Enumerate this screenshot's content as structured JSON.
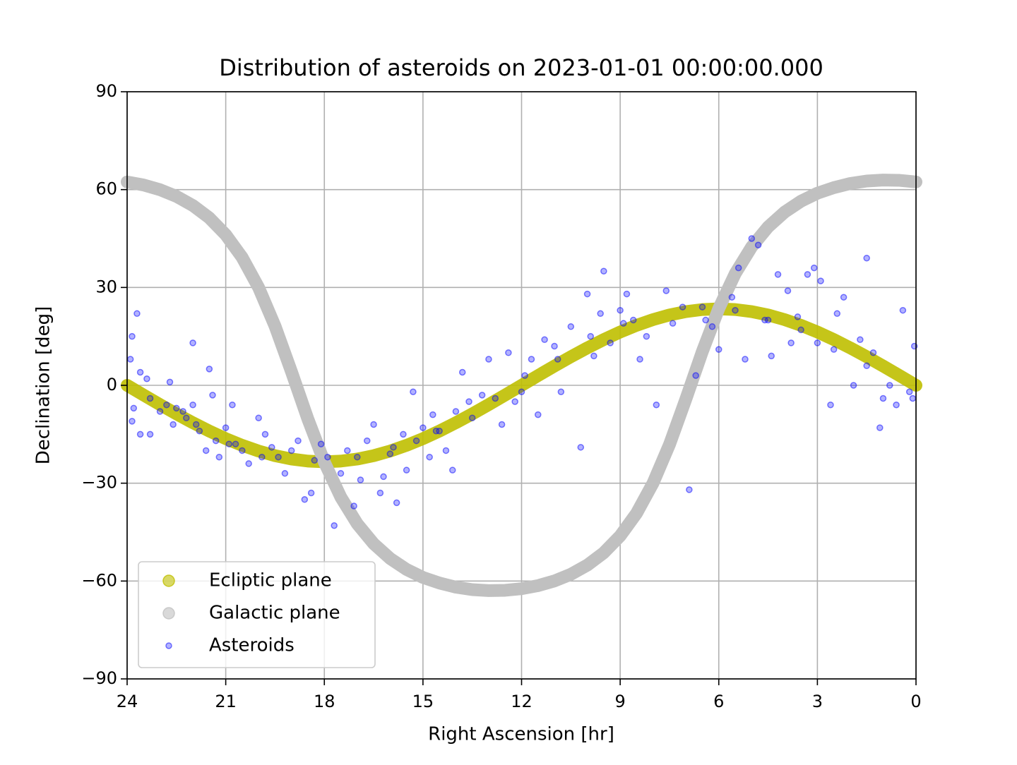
{
  "chart_data": {
    "type": "scatter",
    "title": "Distribution of asteroids on 2023-01-01 00:00:00.000",
    "x_label": "Right Ascension [hr]",
    "y_label": "Declination [deg]",
    "xlim": [
      24,
      0
    ],
    "ylim": [
      -90,
      90
    ],
    "xticks": [
      24,
      21,
      18,
      15,
      12,
      9,
      6,
      3,
      0
    ],
    "yticks": [
      {
        "value": -90,
        "label": "−90"
      },
      {
        "value": -60,
        "label": "−60"
      },
      {
        "value": -30,
        "label": "−30"
      },
      0,
      30,
      60,
      90
    ],
    "grid": true,
    "legend": "lower left",
    "series": [
      {
        "name": "Ecliptic plane",
        "color": "#bfbf00",
        "alpha": 0.9,
        "style": "band",
        "x": [
          0,
          0.5,
          1,
          1.5,
          2,
          2.5,
          3,
          3.5,
          4,
          4.5,
          5,
          5.5,
          6,
          6.5,
          7,
          7.5,
          8,
          8.5,
          9,
          9.5,
          10,
          10.5,
          11,
          11.5,
          12,
          12.5,
          13,
          13.5,
          14,
          14.5,
          15,
          15.5,
          16,
          16.5,
          17,
          17.5,
          18,
          18.5,
          19,
          19.5,
          20,
          20.5,
          21,
          21.5,
          22,
          22.5,
          23,
          23.5,
          24
        ],
        "values": [
          0,
          2.98,
          5.91,
          8.76,
          11.47,
          14.02,
          16.34,
          18.4,
          20.15,
          21.56,
          22.6,
          23.23,
          23.44,
          23.23,
          22.6,
          21.56,
          20.15,
          18.4,
          16.34,
          14.02,
          11.47,
          8.76,
          5.91,
          2.98,
          0,
          -2.98,
          -5.91,
          -8.76,
          -11.47,
          -14.02,
          -16.34,
          -18.4,
          -20.15,
          -21.56,
          -22.6,
          -23.23,
          -23.44,
          -23.23,
          -22.6,
          -21.56,
          -20.15,
          -18.4,
          -16.34,
          -14.02,
          -11.47,
          -8.76,
          -5.91,
          -2.98,
          0
        ]
      },
      {
        "name": "Galactic plane",
        "color": "#c0c0c0",
        "alpha": 1,
        "style": "band",
        "x": [
          0,
          0.5,
          1,
          1.5,
          2,
          2.5,
          3,
          3.5,
          4,
          4.5,
          5,
          5.5,
          6,
          6.5,
          7,
          7.5,
          8,
          8.5,
          9,
          9.5,
          10,
          10.5,
          11,
          11.5,
          12,
          12.5,
          13,
          13.5,
          14,
          14.5,
          15,
          15.5,
          16,
          16.5,
          17,
          17.5,
          18,
          18.5,
          19,
          19.5,
          20,
          20.5,
          21,
          21.5,
          22,
          22.5,
          23,
          23.5,
          24
        ],
        "values": [
          62.35,
          62.84,
          62.92,
          62.63,
          61.87,
          60.6,
          58.9,
          56.44,
          53.08,
          48.56,
          42.45,
          34.26,
          23.54,
          10.36,
          -4.18,
          -18.15,
          -29.98,
          -39.21,
          -46.16,
          -51.33,
          -55.12,
          -57.93,
          -59.97,
          -61.41,
          -62.35,
          -62.84,
          -62.92,
          -62.63,
          -61.87,
          -60.6,
          -58.9,
          -56.44,
          -53.08,
          -48.56,
          -42.45,
          -34.26,
          -23.54,
          -10.36,
          4.18,
          18.15,
          29.98,
          39.21,
          46.16,
          51.33,
          55.12,
          57.93,
          59.97,
          61.41,
          62.35
        ]
      },
      {
        "name": "Asteroids",
        "color": "#0000ff",
        "alpha": 0.3,
        "style": "points",
        "x": [
          23.9,
          23.85,
          23.7,
          23.8,
          23.85,
          23.6,
          23.4,
          23.3,
          23.6,
          23.3,
          23.0,
          22.8,
          22.7,
          22.6,
          22.3,
          22.2,
          22.0,
          22.0,
          21.8,
          21.6,
          21.5,
          21.4,
          21.3,
          21.2,
          21.0,
          20.8,
          20.7,
          20.5,
          20.3,
          20.0,
          19.8,
          19.6,
          19.4,
          19.2,
          19.0,
          18.8,
          18.6,
          18.4,
          18.3,
          18.1,
          17.9,
          17.7,
          17.5,
          17.3,
          17.1,
          16.9,
          16.7,
          16.5,
          16.3,
          16.2,
          16.0,
          15.8,
          15.6,
          15.5,
          15.3,
          15.2,
          15.0,
          14.8,
          14.7,
          14.5,
          14.3,
          14.1,
          14.0,
          13.8,
          13.5,
          13.2,
          13.0,
          12.8,
          12.6,
          12.4,
          12.2,
          12.0,
          11.7,
          11.5,
          11.3,
          11.0,
          10.8,
          10.5,
          10.2,
          10.0,
          9.8,
          9.6,
          9.5,
          9.3,
          9.0,
          8.8,
          8.6,
          8.4,
          8.2,
          7.9,
          7.6,
          7.4,
          7.1,
          6.9,
          6.7,
          6.4,
          6.2,
          6.0,
          5.6,
          5.4,
          5.2,
          5.0,
          4.8,
          4.6,
          4.4,
          4.2,
          3.9,
          3.8,
          3.6,
          3.3,
          3.1,
          3.0,
          2.9,
          2.6,
          2.4,
          2.2,
          1.9,
          1.7,
          1.5,
          1.3,
          1.1,
          1.0,
          0.8,
          0.6,
          0.4,
          0.2,
          0.05,
          0.1,
          22.5,
          21.9,
          20.9,
          19.9,
          17.0,
          15.9,
          14.6,
          13.6,
          11.9,
          10.9,
          9.9,
          8.9,
          6.5,
          5.5,
          4.5,
          3.5,
          2.5,
          1.5
        ],
        "values": [
          8,
          15,
          22,
          -7,
          -11,
          4,
          2,
          -4,
          -15,
          -15,
          -8,
          -6,
          1,
          -12,
          -8,
          -10,
          13,
          -6,
          -14,
          -20,
          5,
          -3,
          -17,
          -22,
          -13,
          -6,
          -18,
          -20,
          -24,
          -10,
          -15,
          -19,
          -22,
          -27,
          -20,
          -17,
          -35,
          -33,
          -23,
          -18,
          -22,
          -43,
          -27,
          -20,
          -37,
          -29,
          -17,
          -12,
          -33,
          -28,
          -21,
          -36,
          -15,
          -26,
          -2,
          -17,
          -13,
          -22,
          -9,
          -14,
          -20,
          -26,
          -8,
          4,
          -10,
          -3,
          8,
          -4,
          -12,
          10,
          -5,
          -2,
          8,
          -9,
          14,
          12,
          -2,
          18,
          -19,
          28,
          9,
          22,
          35,
          13,
          23,
          28,
          20,
          8,
          15,
          -6,
          29,
          19,
          24,
          -32,
          3,
          20,
          18,
          11,
          27,
          36,
          8,
          45,
          43,
          20,
          9,
          34,
          29,
          13,
          21,
          34,
          36,
          13,
          32,
          -6,
          22,
          27,
          0,
          14,
          39,
          10,
          -13,
          -4,
          0,
          -6,
          23,
          -2,
          12,
          -4,
          -7,
          -12,
          -18,
          -22,
          -22,
          -19,
          -14,
          -5,
          3,
          8,
          15,
          19,
          24,
          23,
          20,
          17,
          11,
          6
        ]
      }
    ]
  }
}
